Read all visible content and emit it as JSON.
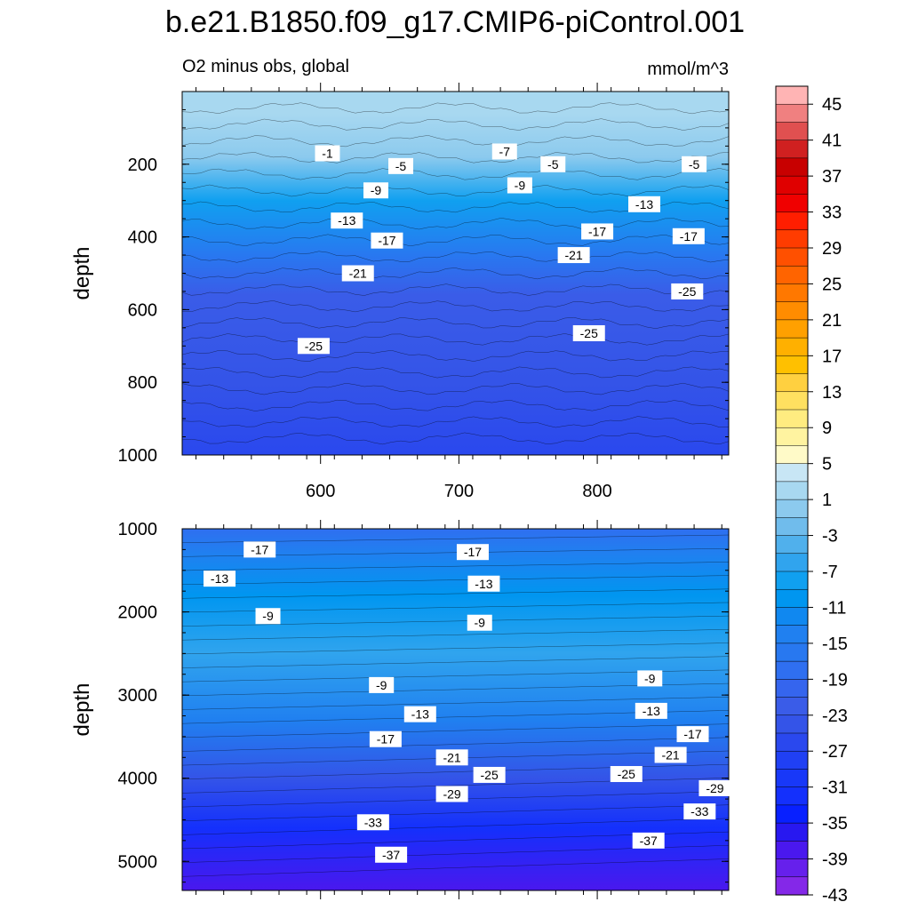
{
  "chart_data": {
    "type": "contour",
    "title": "b.e21.B1850.f09_g17.CMIP6-piControl.001",
    "left_string": "O2 minus obs, global",
    "right_string": "mmol/m^3",
    "ylabel": "depth",
    "xlabel": "",
    "x_range": [
      500,
      895
    ],
    "x_ticks": [
      "600",
      "700",
      "800"
    ],
    "panels": [
      {
        "name": "upper",
        "ylim": [
          0,
          1000
        ],
        "y_ticks": [
          "200",
          "400",
          "600",
          "800",
          "1000"
        ],
        "bands": [
          {
            "depth": 60,
            "value": 1
          },
          {
            "depth": 180,
            "value": -1
          },
          {
            "depth": 300,
            "value": -9
          },
          {
            "depth": 450,
            "value": -17
          },
          {
            "depth": 560,
            "value": -23
          },
          {
            "depth": 800,
            "value": -25
          },
          {
            "depth": 1000,
            "value": -27
          }
        ],
        "contour_labels": [
          {
            "x": 605,
            "y": 170,
            "text": "-1"
          },
          {
            "x": 733,
            "y": 165,
            "text": "-7"
          },
          {
            "x": 658,
            "y": 205,
            "text": "-5"
          },
          {
            "x": 768,
            "y": 200,
            "text": "-5"
          },
          {
            "x": 870,
            "y": 200,
            "text": "-5"
          },
          {
            "x": 640,
            "y": 272,
            "text": "-9"
          },
          {
            "x": 744,
            "y": 258,
            "text": "-9"
          },
          {
            "x": 619,
            "y": 355,
            "text": "-13"
          },
          {
            "x": 834,
            "y": 310,
            "text": "-13"
          },
          {
            "x": 648,
            "y": 410,
            "text": "-17"
          },
          {
            "x": 800,
            "y": 385,
            "text": "-17"
          },
          {
            "x": 866,
            "y": 398,
            "text": "-17"
          },
          {
            "x": 627,
            "y": 500,
            "text": "-21"
          },
          {
            "x": 783,
            "y": 450,
            "text": "-21"
          },
          {
            "x": 865,
            "y": 550,
            "text": "-25"
          },
          {
            "x": 595,
            "y": 700,
            "text": "-25"
          },
          {
            "x": 794,
            "y": 665,
            "text": "-25"
          }
        ]
      },
      {
        "name": "lower",
        "ylim": [
          1000,
          5350
        ],
        "y_ticks": [
          "1000",
          "2000",
          "3000",
          "4000",
          "5000"
        ],
        "bands": [
          {
            "depth": 1000,
            "value": -19
          },
          {
            "depth": 1300,
            "value": -15
          },
          {
            "depth": 1800,
            "value": -11
          },
          {
            "depth": 2500,
            "value": -7
          },
          {
            "depth": 3300,
            "value": -15
          },
          {
            "depth": 4000,
            "value": -25
          },
          {
            "depth": 4600,
            "value": -33
          },
          {
            "depth": 5350,
            "value": -39
          }
        ],
        "contour_labels": [
          {
            "x": 556,
            "y": 1250,
            "text": "-17"
          },
          {
            "x": 710,
            "y": 1280,
            "text": "-17"
          },
          {
            "x": 527,
            "y": 1600,
            "text": "-13"
          },
          {
            "x": 718,
            "y": 1660,
            "text": "-13"
          },
          {
            "x": 562,
            "y": 2050,
            "text": "-9"
          },
          {
            "x": 715,
            "y": 2130,
            "text": "-9"
          },
          {
            "x": 644,
            "y": 2880,
            "text": "-9"
          },
          {
            "x": 838,
            "y": 2800,
            "text": "-9"
          },
          {
            "x": 672,
            "y": 3230,
            "text": "-13"
          },
          {
            "x": 839,
            "y": 3190,
            "text": "-13"
          },
          {
            "x": 647,
            "y": 3530,
            "text": "-17"
          },
          {
            "x": 869,
            "y": 3470,
            "text": "-17"
          },
          {
            "x": 695,
            "y": 3750,
            "text": "-21"
          },
          {
            "x": 853,
            "y": 3720,
            "text": "-21"
          },
          {
            "x": 722,
            "y": 3960,
            "text": "-25"
          },
          {
            "x": 821,
            "y": 3950,
            "text": "-25"
          },
          {
            "x": 695,
            "y": 4190,
            "text": "-29"
          },
          {
            "x": 885,
            "y": 4120,
            "text": "-29"
          },
          {
            "x": 638,
            "y": 4530,
            "text": "-33"
          },
          {
            "x": 874,
            "y": 4400,
            "text": "-33"
          },
          {
            "x": 651,
            "y": 4920,
            "text": "-37"
          },
          {
            "x": 837,
            "y": 4750,
            "text": "-37"
          }
        ]
      }
    ],
    "colorbar": {
      "levels": [
        45,
        43,
        41,
        39,
        37,
        35,
        33,
        31,
        29,
        27,
        25,
        23,
        21,
        19,
        17,
        15,
        13,
        11,
        9,
        7,
        5,
        3,
        1,
        -1,
        -3,
        -5,
        -7,
        -9,
        -11,
        -13,
        -15,
        -17,
        -19,
        -21,
        -23,
        -25,
        -27,
        -29,
        -31,
        -33,
        -35,
        -37,
        -39,
        -41,
        -43
      ],
      "labels": [
        "45",
        "41",
        "37",
        "33",
        "29",
        "25",
        "21",
        "17",
        "13",
        "9",
        "5",
        "1",
        "-3",
        "-7",
        "-11",
        "-15",
        "-19",
        "-23",
        "-27",
        "-31",
        "-35",
        "-39",
        "-43"
      ],
      "colors": [
        "#ffb4b4",
        "#f08080",
        "#e05050",
        "#d02020",
        "#c80000",
        "#e00000",
        "#f00000",
        "#ff1e00",
        "#ff3c00",
        "#ff5000",
        "#ff6400",
        "#ff7800",
        "#ff8c00",
        "#ffa000",
        "#ffb000",
        "#ffc000",
        "#ffd040",
        "#ffe060",
        "#ffec80",
        "#fff3a0",
        "#fffac8",
        "#c8e6f5",
        "#a8d8f0",
        "#8ccaee",
        "#70bcec",
        "#50b0ec",
        "#30a4ee",
        "#10a0f0",
        "#0096f0",
        "#1088f0",
        "#2080f0",
        "#2878f0",
        "#2f6ff0",
        "#3565ee",
        "#3a5ce8",
        "#3454e8",
        "#2a48ee",
        "#2040f4",
        "#1838f8",
        "#1430fc",
        "#0820ff",
        "#2818f0",
        "#4a18ee",
        "#6620ec",
        "#8428e8"
      ]
    }
  }
}
